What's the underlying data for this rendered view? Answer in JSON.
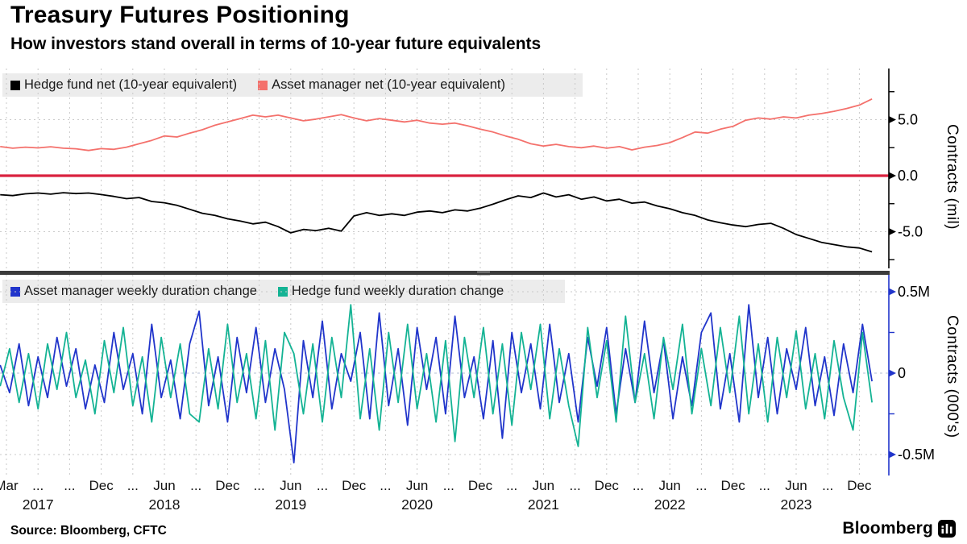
{
  "header": {
    "title": "Treasury Futures Positioning",
    "subtitle": "How investors stand overall in terms of 10-year future equivalents"
  },
  "source_line": "Source: Bloomberg, CFTC",
  "brand": {
    "name": "Bloomberg",
    "icon": "bloomberg-terminal-icon"
  },
  "colors": {
    "hedge_black": "#000000",
    "asset_salmon": "#f4716c",
    "am_blue": "#2135cb",
    "hf_teal": "#14b394",
    "zero_red": "#d9213f",
    "axis2_blue": "#2135cb",
    "grid": "#c9c9c9",
    "zero2_dash": "#b6bfd6",
    "legend_bg": "#ececec",
    "divider": "#3b3b3b"
  },
  "chart_data": {
    "type": "line",
    "x_unit": "decimal_year",
    "x_range": [
      2017.12,
      2024.07
    ],
    "x_tick_labels": [
      "Mar",
      "...",
      "...",
      "Dec",
      "...",
      "Jun",
      "...",
      "Dec",
      "...",
      "Jun",
      "...",
      "Dec",
      "...",
      "Jun",
      "...",
      "Dec",
      "...",
      "Jun",
      "...",
      "Dec",
      "...",
      "Jun",
      "...",
      "Dec",
      "...",
      "Jun",
      "...",
      "Dec"
    ],
    "x_years": [
      {
        "label": "2017",
        "tick": 1
      },
      {
        "label": "2018",
        "tick": 5
      },
      {
        "label": "2019",
        "tick": 9
      },
      {
        "label": "2020",
        "tick": 13
      },
      {
        "label": "2021",
        "tick": 17
      },
      {
        "label": "2022",
        "tick": 21
      },
      {
        "label": "2023",
        "tick": 25
      }
    ],
    "panels": [
      {
        "name": "net-positioning",
        "ylabel": "Contracts (mil)",
        "ylim": [
          -8.3,
          9.6
        ],
        "yticks_major": [
          {
            "value": 5,
            "label": "5.0"
          },
          {
            "value": 0,
            "label": "0.0"
          },
          {
            "value": -5,
            "label": "-5.0"
          }
        ],
        "yticks_minor": [
          7.5,
          2.5,
          -2.5,
          -7.5
        ],
        "gridlines_y": [
          5,
          -5
        ],
        "zero_line": true,
        "legend": [
          {
            "label": "Hedge fund net (10-year equivalent)",
            "color_key": "hedge_black"
          },
          {
            "label": "Asset manager net (10-year equivalent)",
            "color_key": "asset_salmon"
          }
        ],
        "series": [
          {
            "name": "hedge_fund_net",
            "color_key": "hedge_black",
            "start": 2017.12,
            "step": 0.1,
            "values": [
              -1.7,
              -1.78,
              -1.62,
              -1.55,
              -1.65,
              -1.52,
              -1.6,
              -1.55,
              -1.68,
              -1.85,
              -2.05,
              -1.95,
              -2.3,
              -2.42,
              -2.65,
              -3.0,
              -3.35,
              -3.55,
              -3.85,
              -4.05,
              -4.3,
              -4.15,
              -4.55,
              -5.1,
              -4.8,
              -4.9,
              -4.7,
              -4.95,
              -3.6,
              -3.3,
              -3.55,
              -3.4,
              -3.55,
              -3.25,
              -3.15,
              -3.3,
              -3.05,
              -3.15,
              -2.9,
              -2.55,
              -2.15,
              -1.8,
              -1.95,
              -1.55,
              -1.9,
              -1.7,
              -2.1,
              -1.9,
              -2.25,
              -2.1,
              -2.45,
              -2.35,
              -2.7,
              -2.95,
              -3.3,
              -3.55,
              -3.95,
              -4.2,
              -4.4,
              -4.55,
              -4.35,
              -4.25,
              -4.7,
              -5.25,
              -5.6,
              -5.95,
              -6.15,
              -6.35,
              -6.45,
              -6.8
            ]
          },
          {
            "name": "asset_manager_net",
            "color_key": "asset_salmon",
            "start": 2017.12,
            "step": 0.1,
            "values": [
              2.6,
              2.45,
              2.55,
              2.48,
              2.58,
              2.45,
              2.4,
              2.25,
              2.42,
              2.35,
              2.55,
              2.85,
              3.15,
              3.55,
              3.45,
              3.8,
              4.1,
              4.5,
              4.8,
              5.1,
              5.4,
              5.25,
              5.4,
              5.15,
              4.9,
              5.05,
              5.25,
              5.45,
              5.15,
              4.9,
              5.1,
              4.95,
              4.8,
              4.95,
              4.7,
              4.6,
              4.7,
              4.45,
              4.15,
              3.9,
              3.55,
              3.25,
              2.85,
              2.65,
              2.8,
              2.6,
              2.5,
              2.65,
              2.45,
              2.6,
              2.3,
              2.55,
              2.7,
              2.95,
              3.4,
              3.9,
              3.8,
              4.15,
              4.4,
              4.95,
              5.15,
              5.05,
              5.25,
              5.15,
              5.4,
              5.55,
              5.75,
              6.0,
              6.3,
              6.85
            ]
          }
        ]
      },
      {
        "name": "weekly-duration-change",
        "ylabel": "Contracts (000's)",
        "ylim": [
          -0.63,
          0.6
        ],
        "yticks_major": [
          {
            "value": 0.5,
            "label": "0.5M"
          },
          {
            "value": 0,
            "label": "0"
          },
          {
            "value": -0.5,
            "label": "-0.5M"
          }
        ],
        "yticks_minor": [
          0.25,
          -0.25
        ],
        "gridlines_y": [
          0.5,
          -0.5
        ],
        "zero_dashed": true,
        "legend": [
          {
            "label": "Asset manager weekly duration change",
            "color_key": "am_blue"
          },
          {
            "label": "Hedge fund weekly duration change",
            "color_key": "hf_teal"
          }
        ],
        "series": [
          {
            "name": "asset_manager_weekly_change",
            "color_key": "am_blue",
            "start": 2017.12,
            "step": 0.075,
            "values": [
              0.05,
              -0.12,
              0.18,
              -0.2,
              0.1,
              -0.15,
              0.22,
              -0.08,
              0.15,
              -0.22,
              0.05,
              -0.18,
              0.25,
              -0.1,
              0.12,
              -0.25,
              0.3,
              -0.15,
              0.08,
              -0.28,
              0.18,
              0.38,
              -0.2,
              0.1,
              -0.3,
              0.22,
              -0.12,
              0.28,
              -0.18,
              0.15,
              -0.1,
              -0.55,
              0.2,
              -0.15,
              0.32,
              -0.22,
              0.12,
              -0.05,
              0.25,
              -0.28,
              0.37,
              -0.2,
              0.15,
              -0.32,
              0.28,
              -0.1,
              0.22,
              -0.25,
              0.35,
              -0.15,
              0.1,
              -0.28,
              0.2,
              -0.4,
              0.25,
              -0.12,
              0.18,
              -0.22,
              0.3,
              -0.18,
              0.12,
              -0.3,
              0.22,
              -0.08,
              0.28,
              -0.25,
              0.15,
              -0.18,
              0.32,
              -0.12,
              0.2,
              -0.28,
              0.1,
              -0.2,
              0.25,
              0.37,
              -0.22,
              0.12,
              -0.3,
              0.42,
              -0.15,
              0.22,
              -0.25,
              0.15,
              -0.1,
              0.28,
              -0.2,
              0.1,
              -0.26,
              0.18,
              -0.12,
              0.3,
              -0.05
            ]
          },
          {
            "name": "hedge_fund_weekly_change",
            "color_key": "hf_teal",
            "start": 2017.12,
            "step": 0.075,
            "values": [
              -0.08,
              0.15,
              -0.18,
              0.12,
              -0.22,
              0.18,
              -0.1,
              0.25,
              -0.15,
              0.08,
              -0.25,
              0.2,
              -0.12,
              0.28,
              -0.2,
              0.1,
              -0.3,
              0.22,
              -0.15,
              0.18,
              -0.25,
              -0.3,
              0.15,
              -0.22,
              0.3,
              -0.18,
              0.12,
              -0.28,
              0.2,
              -0.35,
              0.25,
              0.12,
              -0.25,
              0.18,
              -0.3,
              0.22,
              -0.15,
              0.42,
              -0.28,
              0.15,
              -0.35,
              0.25,
              -0.18,
              0.3,
              -0.22,
              0.12,
              -0.3,
              0.2,
              -0.42,
              0.22,
              -0.15,
              0.28,
              -0.25,
              0.18,
              -0.32,
              0.25,
              -0.1,
              0.3,
              -0.28,
              0.15,
              -0.2,
              -0.45,
              0.28,
              -0.15,
              0.2,
              -0.3,
              0.35,
              -0.18,
              0.12,
              -0.28,
              0.22,
              -0.1,
              0.3,
              -0.25,
              0.15,
              -0.2,
              0.28,
              -0.12,
              0.35,
              -0.25,
              0.18,
              -0.3,
              0.22,
              -0.15,
              0.26,
              -0.22,
              0.12,
              -0.28,
              0.2,
              -0.15,
              -0.35,
              0.25,
              -0.18
            ]
          }
        ]
      }
    ]
  }
}
